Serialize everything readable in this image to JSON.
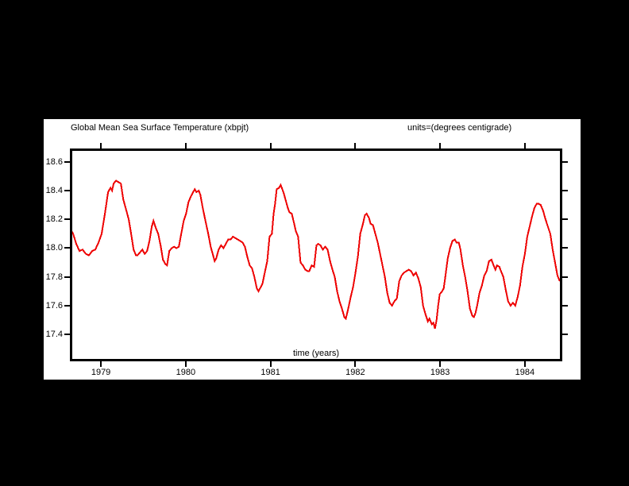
{
  "window": {
    "background": "#000000",
    "figure_background": "#ffffff"
  },
  "chart_data": {
    "type": "line",
    "title": "Global Mean Sea Surface Temperature (xbpjt)",
    "units_label": "units=(degrees centigrade)",
    "xlabel": "time (years)",
    "ylabel": "",
    "legend": "none",
    "grid": false,
    "line_color": "#ee0000",
    "axis_color": "#000000",
    "xlim": [
      1978.662,
      1984.413
    ],
    "ylim": [
      17.229,
      18.677
    ],
    "x_ticks": [
      {
        "value": 1979,
        "label": "1979"
      },
      {
        "value": 1980,
        "label": "1980"
      },
      {
        "value": 1981,
        "label": "1981"
      },
      {
        "value": 1982,
        "label": "1982"
      },
      {
        "value": 1983,
        "label": "1983"
      },
      {
        "value": 1984,
        "label": "1984"
      }
    ],
    "y_ticks": [
      {
        "value": 18.6,
        "label": "18.6"
      },
      {
        "value": 18.4,
        "label": "18.4"
      },
      {
        "value": 18.2,
        "label": "18.2"
      },
      {
        "value": 18.0,
        "label": "18.0"
      },
      {
        "value": 17.8,
        "label": "17.8"
      },
      {
        "value": 17.6,
        "label": "17.6"
      },
      {
        "value": 17.4,
        "label": "17.4"
      }
    ],
    "series": [
      {
        "points": [
          [
            1978.634,
            18.14
          ],
          [
            1978.672,
            18.1
          ],
          [
            1978.709,
            18.03
          ],
          [
            1978.747,
            17.98
          ],
          [
            1978.784,
            17.99
          ],
          [
            1978.822,
            17.96
          ],
          [
            1978.859,
            17.95
          ],
          [
            1978.897,
            17.98
          ],
          [
            1978.934,
            17.99
          ],
          [
            1978.972,
            18.04
          ],
          [
            1979.009,
            18.1
          ],
          [
            1979.047,
            18.24
          ],
          [
            1979.084,
            18.39
          ],
          [
            1979.113,
            18.42
          ],
          [
            1979.131,
            18.4
          ],
          [
            1979.15,
            18.45
          ],
          [
            1979.178,
            18.47
          ],
          [
            1979.206,
            18.46
          ],
          [
            1979.235,
            18.45
          ],
          [
            1979.263,
            18.34
          ],
          [
            1979.291,
            18.28
          ],
          [
            1979.328,
            18.2
          ],
          [
            1979.356,
            18.1
          ],
          [
            1979.385,
            17.99
          ],
          [
            1979.413,
            17.95
          ],
          [
            1979.431,
            17.95
          ],
          [
            1979.46,
            17.97
          ],
          [
            1979.488,
            17.99
          ],
          [
            1979.516,
            17.96
          ],
          [
            1979.544,
            17.98
          ],
          [
            1979.572,
            18.05
          ],
          [
            1979.6,
            18.15
          ],
          [
            1979.619,
            18.19
          ],
          [
            1979.647,
            18.14
          ],
          [
            1979.675,
            18.1
          ],
          [
            1979.704,
            18.02
          ],
          [
            1979.732,
            17.92
          ],
          [
            1979.76,
            17.89
          ],
          [
            1979.779,
            17.88
          ],
          [
            1979.807,
            17.98
          ],
          [
            1979.835,
            18.0
          ],
          [
            1979.863,
            18.01
          ],
          [
            1979.891,
            18.0
          ],
          [
            1979.919,
            18.01
          ],
          [
            1979.947,
            18.1
          ],
          [
            1979.976,
            18.19
          ],
          [
            1980.004,
            18.24
          ],
          [
            1980.032,
            18.32
          ],
          [
            1980.06,
            18.36
          ],
          [
            1980.088,
            18.39
          ],
          [
            1980.107,
            18.41
          ],
          [
            1980.126,
            18.39
          ],
          [
            1980.154,
            18.4
          ],
          [
            1980.173,
            18.37
          ],
          [
            1980.201,
            18.28
          ],
          [
            1980.229,
            18.2
          ],
          [
            1980.266,
            18.1
          ],
          [
            1980.295,
            18.01
          ],
          [
            1980.323,
            17.95
          ],
          [
            1980.341,
            17.91
          ],
          [
            1980.36,
            17.93
          ],
          [
            1980.388,
            17.99
          ],
          [
            1980.417,
            18.02
          ],
          [
            1980.445,
            18.0
          ],
          [
            1980.473,
            18.03
          ],
          [
            1980.501,
            18.06
          ],
          [
            1980.529,
            18.06
          ],
          [
            1980.557,
            18.08
          ],
          [
            1980.585,
            18.07
          ],
          [
            1980.614,
            18.06
          ],
          [
            1980.642,
            18.05
          ],
          [
            1980.67,
            18.04
          ],
          [
            1980.698,
            18.01
          ],
          [
            1980.726,
            17.94
          ],
          [
            1980.754,
            17.88
          ],
          [
            1980.782,
            17.86
          ],
          [
            1980.81,
            17.8
          ],
          [
            1980.839,
            17.72
          ],
          [
            1980.858,
            17.7
          ],
          [
            1980.876,
            17.72
          ],
          [
            1980.904,
            17.75
          ],
          [
            1980.932,
            17.83
          ],
          [
            1980.961,
            17.91
          ],
          [
            1980.989,
            18.08
          ],
          [
            1981.017,
            18.1
          ],
          [
            1981.036,
            18.24
          ],
          [
            1981.054,
            18.31
          ],
          [
            1981.073,
            18.41
          ],
          [
            1981.101,
            18.42
          ],
          [
            1981.12,
            18.44
          ],
          [
            1981.139,
            18.41
          ],
          [
            1981.157,
            18.38
          ],
          [
            1981.185,
            18.32
          ],
          [
            1981.204,
            18.28
          ],
          [
            1981.223,
            18.25
          ],
          [
            1981.251,
            18.24
          ],
          [
            1981.279,
            18.17
          ],
          [
            1981.298,
            18.12
          ],
          [
            1981.326,
            18.08
          ],
          [
            1981.354,
            17.9
          ],
          [
            1981.382,
            17.88
          ],
          [
            1981.41,
            17.85
          ],
          [
            1981.439,
            17.84
          ],
          [
            1981.457,
            17.84
          ],
          [
            1981.486,
            17.88
          ],
          [
            1981.514,
            17.87
          ],
          [
            1981.542,
            18.02
          ],
          [
            1981.561,
            18.03
          ],
          [
            1981.589,
            18.02
          ],
          [
            1981.617,
            17.99
          ],
          [
            1981.645,
            18.01
          ],
          [
            1981.673,
            17.99
          ],
          [
            1981.702,
            17.91
          ],
          [
            1981.73,
            17.85
          ],
          [
            1981.758,
            17.8
          ],
          [
            1981.786,
            17.7
          ],
          [
            1981.814,
            17.63
          ],
          [
            1981.842,
            17.58
          ],
          [
            1981.871,
            17.52
          ],
          [
            1981.889,
            17.51
          ],
          [
            1981.917,
            17.58
          ],
          [
            1981.946,
            17.66
          ],
          [
            1981.974,
            17.73
          ],
          [
            1982.002,
            17.83
          ],
          [
            1982.03,
            17.94
          ],
          [
            1982.058,
            18.1
          ],
          [
            1982.086,
            18.16
          ],
          [
            1982.114,
            18.23
          ],
          [
            1982.133,
            18.24
          ],
          [
            1982.161,
            18.21
          ],
          [
            1982.18,
            18.17
          ],
          [
            1982.208,
            18.16
          ],
          [
            1982.236,
            18.1
          ],
          [
            1982.264,
            18.04
          ],
          [
            1982.292,
            17.96
          ],
          [
            1982.321,
            17.88
          ],
          [
            1982.349,
            17.8
          ],
          [
            1982.377,
            17.69
          ],
          [
            1982.405,
            17.62
          ],
          [
            1982.433,
            17.6
          ],
          [
            1982.461,
            17.63
          ],
          [
            1982.49,
            17.65
          ],
          [
            1982.518,
            17.77
          ],
          [
            1982.546,
            17.81
          ],
          [
            1982.574,
            17.83
          ],
          [
            1982.602,
            17.84
          ],
          [
            1982.63,
            17.85
          ],
          [
            1982.658,
            17.84
          ],
          [
            1982.687,
            17.81
          ],
          [
            1982.715,
            17.83
          ],
          [
            1982.743,
            17.79
          ],
          [
            1982.771,
            17.73
          ],
          [
            1982.799,
            17.6
          ],
          [
            1982.827,
            17.54
          ],
          [
            1982.856,
            17.49
          ],
          [
            1982.874,
            17.51
          ],
          [
            1982.902,
            17.47
          ],
          [
            1982.921,
            17.48
          ],
          [
            1982.94,
            17.44
          ],
          [
            1982.958,
            17.5
          ],
          [
            1982.977,
            17.6
          ],
          [
            1982.996,
            17.68
          ],
          [
            1983.024,
            17.7
          ],
          [
            1983.043,
            17.72
          ],
          [
            1983.061,
            17.8
          ],
          [
            1983.09,
            17.93
          ],
          [
            1983.118,
            18.0
          ],
          [
            1983.146,
            18.05
          ],
          [
            1983.174,
            18.06
          ],
          [
            1983.193,
            18.04
          ],
          [
            1983.221,
            18.04
          ],
          [
            1983.24,
            17.99
          ],
          [
            1983.268,
            17.88
          ],
          [
            1983.296,
            17.8
          ],
          [
            1983.324,
            17.7
          ],
          [
            1983.352,
            17.58
          ],
          [
            1983.38,
            17.53
          ],
          [
            1983.399,
            17.52
          ],
          [
            1983.418,
            17.55
          ],
          [
            1983.437,
            17.6
          ],
          [
            1983.465,
            17.69
          ],
          [
            1983.493,
            17.74
          ],
          [
            1983.521,
            17.81
          ],
          [
            1983.549,
            17.84
          ],
          [
            1983.577,
            17.91
          ],
          [
            1983.606,
            17.92
          ],
          [
            1983.624,
            17.89
          ],
          [
            1983.652,
            17.85
          ],
          [
            1983.671,
            17.88
          ],
          [
            1983.699,
            17.87
          ],
          [
            1983.718,
            17.84
          ],
          [
            1983.746,
            17.8
          ],
          [
            1983.774,
            17.71
          ],
          [
            1983.802,
            17.63
          ],
          [
            1983.831,
            17.6
          ],
          [
            1983.859,
            17.62
          ],
          [
            1983.887,
            17.6
          ],
          [
            1983.915,
            17.66
          ],
          [
            1983.943,
            17.74
          ],
          [
            1983.971,
            17.87
          ],
          [
            1984.0,
            17.96
          ],
          [
            1984.028,
            18.08
          ],
          [
            1984.056,
            18.15
          ],
          [
            1984.084,
            18.22
          ],
          [
            1984.112,
            18.28
          ],
          [
            1984.14,
            18.31
          ],
          [
            1984.159,
            18.31
          ],
          [
            1984.187,
            18.3
          ],
          [
            1984.215,
            18.26
          ],
          [
            1984.243,
            18.2
          ],
          [
            1984.272,
            18.15
          ],
          [
            1984.3,
            18.1
          ],
          [
            1984.328,
            17.99
          ],
          [
            1984.356,
            17.9
          ],
          [
            1984.384,
            17.81
          ],
          [
            1984.412,
            17.77
          ]
        ]
      }
    ]
  }
}
